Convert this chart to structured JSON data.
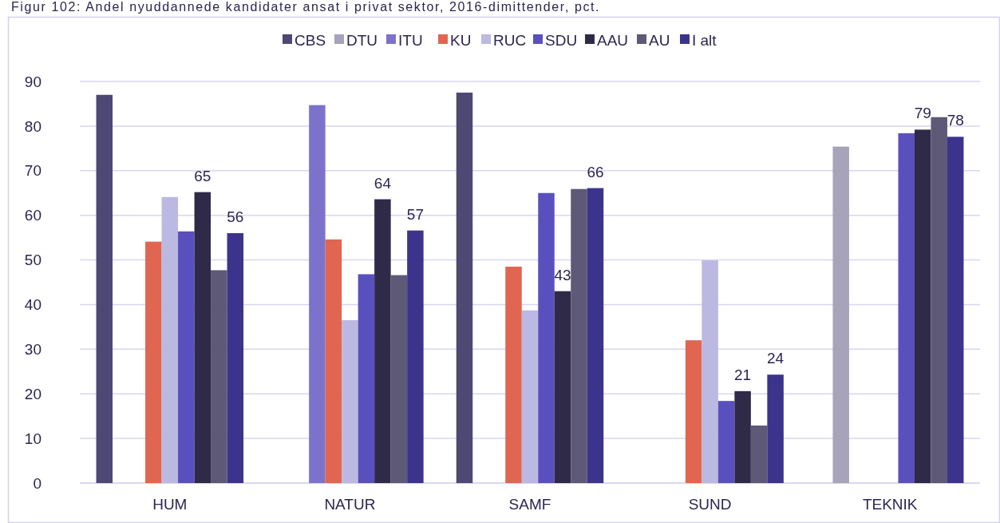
{
  "chart_data": {
    "type": "bar",
    "title": "Figur 102: Andel nyuddannede kandidater ansat i privat sektor, 2016-dimittender, pct.",
    "categories": [
      "HUM",
      "NATUR",
      "SAMF",
      "SUND",
      "TEKNIK"
    ],
    "ylim": [
      0,
      90
    ],
    "yticks": [
      0,
      10,
      20,
      30,
      40,
      50,
      60,
      70,
      80,
      90
    ],
    "grid": "y",
    "legend": "top",
    "series": [
      {
        "name": "CBS",
        "color": "#4e4874",
        "values": [
          87.0,
          null,
          87.5,
          null,
          null
        ]
      },
      {
        "name": "DTU",
        "color": "#a7a3bb",
        "values": [
          null,
          null,
          null,
          null,
          75.4
        ]
      },
      {
        "name": "ITU",
        "color": "#7b73cb",
        "values": [
          null,
          84.7,
          null,
          null,
          null
        ]
      },
      {
        "name": "KU",
        "color": "#e06651",
        "values": [
          54.1,
          54.6,
          48.5,
          32.0,
          null
        ]
      },
      {
        "name": "RUC",
        "color": "#bbb8e2",
        "values": [
          64.1,
          36.5,
          38.7,
          49.9,
          null
        ]
      },
      {
        "name": "SDU",
        "color": "#5a50bd",
        "values": [
          56.4,
          46.8,
          65.0,
          18.4,
          78.4
        ]
      },
      {
        "name": "AAU",
        "color": "#2e2a48",
        "values": [
          65.2,
          63.6,
          43.0,
          20.6,
          79.2
        ],
        "value_labels": [
          "65",
          "64",
          "43",
          "21",
          "79"
        ]
      },
      {
        "name": "AU",
        "color": "#5e5977",
        "values": [
          47.7,
          46.6,
          65.9,
          12.9,
          82.0
        ]
      },
      {
        "name": "I alt",
        "color": "#3c348c",
        "values": [
          56.0,
          56.6,
          66.1,
          24.3,
          77.6
        ],
        "value_labels": [
          "56",
          "57",
          "66",
          "24",
          "78"
        ]
      }
    ]
  }
}
